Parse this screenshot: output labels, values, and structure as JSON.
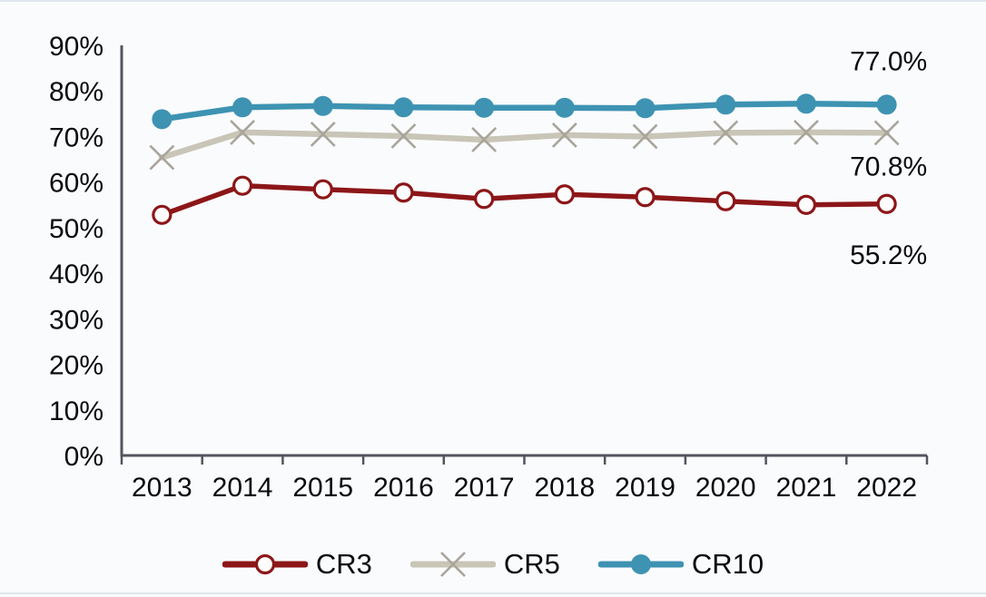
{
  "chart_data": {
    "type": "line",
    "title": "",
    "xlabel": "",
    "ylabel": "",
    "ylim": [
      0,
      90
    ],
    "grid": false,
    "legend_position": "bottom",
    "x_categories": [
      "2013",
      "2014",
      "2015",
      "2016",
      "2017",
      "2018",
      "2019",
      "2020",
      "2021",
      "2022"
    ],
    "y_tick_labels": [
      "90%",
      "80%",
      "70%",
      "60%",
      "50%",
      "40%",
      "30%",
      "20%",
      "10%",
      "0%"
    ],
    "series": [
      {
        "name": "CR3",
        "marker": "open-circle",
        "color": "#8c1618",
        "marker_color": "#8c1618",
        "values": [
          52.8,
          59.2,
          58.4,
          57.7,
          56.3,
          57.3,
          56.7,
          55.8,
          55.0,
          55.2
        ]
      },
      {
        "name": "CR5",
        "marker": "x",
        "color": "#c9c5b7",
        "marker_color": "#a9a59b",
        "values": [
          65.4,
          70.9,
          70.5,
          70.1,
          69.3,
          70.3,
          70.0,
          70.8,
          70.9,
          70.8
        ]
      },
      {
        "name": "CR10",
        "marker": "filled-circle",
        "color": "#3e93b2",
        "marker_color": "#3e93b2",
        "values": [
          73.8,
          76.4,
          76.7,
          76.4,
          76.3,
          76.3,
          76.2,
          77.0,
          77.2,
          77.0
        ]
      }
    ],
    "end_labels": [
      {
        "text": "77.0%",
        "series": "CR10"
      },
      {
        "text": "70.8%",
        "series": "CR5"
      },
      {
        "text": "55.2%",
        "series": "CR3"
      }
    ]
  },
  "colors": {
    "background": "#fafbfd",
    "edge_line": "#dfe5ee",
    "axis": "#54545e",
    "text": "#0b0b0d",
    "open_marker_fill": "#fdfdfe"
  }
}
